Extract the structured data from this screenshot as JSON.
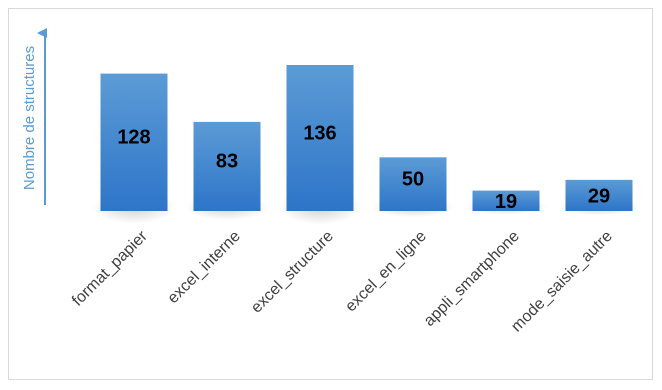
{
  "chart_data": {
    "type": "bar",
    "title": "",
    "xlabel": "",
    "ylabel": "Nombre de structures",
    "categories": [
      "format_papier",
      "excel_interne",
      "excel_structure",
      "excel_en_ligne",
      "appli_smartphone",
      "mode_saisie_autre"
    ],
    "values": [
      128,
      83,
      136,
      50,
      19,
      29
    ],
    "value_labels": [
      "128",
      "83",
      "136",
      "50",
      "19",
      "29"
    ],
    "ylim": [
      0,
      136
    ],
    "grid": false,
    "legend": "none",
    "colors": {
      "bar_top": "#5b9bd5",
      "bar_bottom": "#2e75c9",
      "axis_arrow": "#5b9bd5",
      "ylabel": "#5b9bd5",
      "value_label": "#000000",
      "category_label": "#404040"
    }
  }
}
